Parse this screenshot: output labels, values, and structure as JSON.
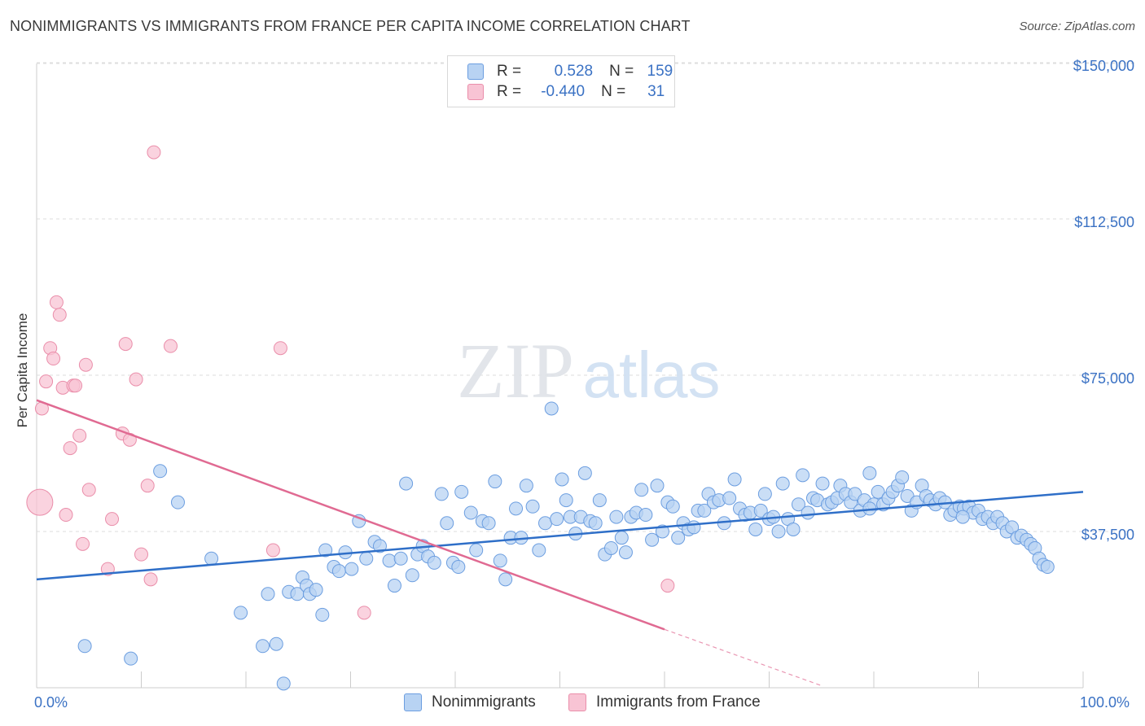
{
  "title": "NONIMMIGRANTS VS IMMIGRANTS FROM FRANCE PER CAPITA INCOME CORRELATION CHART",
  "source": "Source: ZipAtlas.com",
  "watermark": {
    "zip": "ZIP",
    "atlas": "atlas"
  },
  "colors": {
    "blue_fill": "#b8d3f3",
    "blue_stroke": "#6c9ee0",
    "blue_line": "#2f6fc8",
    "pink_fill": "#f8c4d4",
    "pink_stroke": "#ea8eaa",
    "pink_line": "#e06a92",
    "axis_text": "#3b72c4"
  },
  "legend": {
    "rows": [
      {
        "r_label": "R =",
        "r_value": "0.528",
        "n_label": "N =",
        "n_value": "159",
        "color": "#b8d3f3",
        "border": "#6c9ee0"
      },
      {
        "r_label": "R =",
        "r_value": "-0.440",
        "n_label": "N =",
        "n_value": "31",
        "color": "#f8c4d4",
        "border": "#ea8eaa"
      }
    ]
  },
  "bottom_legend": [
    {
      "label": "Nonimmigrants",
      "color": "#b8d3f3",
      "border": "#6c9ee0"
    },
    {
      "label": "Immigrants from France",
      "color": "#f8c4d4",
      "border": "#ea8eaa"
    }
  ],
  "chart_data": {
    "type": "scatter",
    "title": "NONIMMIGRANTS VS IMMIGRANTS FROM FRANCE PER CAPITA INCOME CORRELATION CHART",
    "xlabel": "",
    "ylabel": "Per Capita Income",
    "xlim": [
      0,
      100
    ],
    "ylim": [
      0,
      152000
    ],
    "x_tick_labels": [
      "0.0%",
      "100.0%"
    ],
    "y_ticks": [
      37500,
      75000,
      112500,
      150000
    ],
    "y_tick_labels": [
      "$37,500",
      "$75,000",
      "$112,500",
      "$150,000"
    ],
    "grid": true,
    "legend_position": "top-center",
    "series": [
      {
        "name": "Nonimmigrants",
        "trend": {
          "x": [
            0,
            100
          ],
          "y": [
            26000,
            47000
          ]
        },
        "points": [
          [
            4.6,
            10000
          ],
          [
            9.0,
            7000
          ],
          [
            11.8,
            52000
          ],
          [
            13.5,
            44500
          ],
          [
            16.7,
            31000
          ],
          [
            19.5,
            18000
          ],
          [
            21.6,
            10000
          ],
          [
            22.1,
            22500
          ],
          [
            22.9,
            10500
          ],
          [
            23.6,
            1000
          ],
          [
            24.1,
            23000
          ],
          [
            24.9,
            22500
          ],
          [
            25.4,
            26500
          ],
          [
            25.8,
            24500
          ],
          [
            26.1,
            22500
          ],
          [
            26.7,
            23500
          ],
          [
            27.3,
            17500
          ],
          [
            27.6,
            33000
          ],
          [
            28.4,
            29000
          ],
          [
            28.9,
            28000
          ],
          [
            29.5,
            32500
          ],
          [
            30.1,
            28500
          ],
          [
            30.8,
            40000
          ],
          [
            31.5,
            31000
          ],
          [
            32.3,
            35000
          ],
          [
            32.8,
            34000
          ],
          [
            33.7,
            30500
          ],
          [
            34.2,
            24500
          ],
          [
            34.8,
            31000
          ],
          [
            35.3,
            49000
          ],
          [
            35.9,
            27000
          ],
          [
            36.4,
            32000
          ],
          [
            36.9,
            34000
          ],
          [
            37.4,
            31500
          ],
          [
            38.0,
            30000
          ],
          [
            38.7,
            46500
          ],
          [
            39.2,
            39500
          ],
          [
            39.8,
            30000
          ],
          [
            40.3,
            29000
          ],
          [
            40.6,
            47000
          ],
          [
            41.5,
            42000
          ],
          [
            42.0,
            33000
          ],
          [
            42.6,
            40000
          ],
          [
            43.2,
            39500
          ],
          [
            43.8,
            49500
          ],
          [
            44.3,
            30500
          ],
          [
            44.8,
            26000
          ],
          [
            45.3,
            36000
          ],
          [
            45.8,
            43000
          ],
          [
            46.3,
            36000
          ],
          [
            46.8,
            48500
          ],
          [
            47.4,
            43500
          ],
          [
            48.0,
            33000
          ],
          [
            48.6,
            39500
          ],
          [
            49.2,
            67000
          ],
          [
            49.7,
            40500
          ],
          [
            50.2,
            50000
          ],
          [
            50.6,
            45000
          ],
          [
            51.0,
            41000
          ],
          [
            51.5,
            37000
          ],
          [
            52.0,
            41000
          ],
          [
            52.4,
            51500
          ],
          [
            52.9,
            40000
          ],
          [
            53.4,
            39500
          ],
          [
            53.8,
            45000
          ],
          [
            54.3,
            32000
          ],
          [
            54.9,
            33500
          ],
          [
            55.4,
            41000
          ],
          [
            55.9,
            36000
          ],
          [
            56.3,
            32500
          ],
          [
            56.8,
            41000
          ],
          [
            57.3,
            42000
          ],
          [
            57.8,
            47500
          ],
          [
            58.2,
            41500
          ],
          [
            58.8,
            35500
          ],
          [
            59.3,
            48500
          ],
          [
            59.8,
            37500
          ],
          [
            60.3,
            44500
          ],
          [
            60.8,
            43500
          ],
          [
            61.3,
            36000
          ],
          [
            61.8,
            39500
          ],
          [
            62.3,
            38000
          ],
          [
            62.8,
            38500
          ],
          [
            63.2,
            42500
          ],
          [
            63.8,
            42500
          ],
          [
            64.2,
            46500
          ],
          [
            64.7,
            44500
          ],
          [
            65.2,
            45000
          ],
          [
            65.7,
            39500
          ],
          [
            66.2,
            45500
          ],
          [
            66.7,
            50000
          ],
          [
            67.2,
            43000
          ],
          [
            67.7,
            41500
          ],
          [
            68.2,
            42000
          ],
          [
            68.7,
            38000
          ],
          [
            69.2,
            42500
          ],
          [
            69.6,
            46500
          ],
          [
            70.0,
            40500
          ],
          [
            70.4,
            41000
          ],
          [
            70.9,
            37500
          ],
          [
            71.3,
            49000
          ],
          [
            71.8,
            40500
          ],
          [
            72.3,
            38000
          ],
          [
            72.8,
            44000
          ],
          [
            73.2,
            51000
          ],
          [
            73.7,
            42000
          ],
          [
            74.2,
            45500
          ],
          [
            74.6,
            45000
          ],
          [
            75.1,
            49000
          ],
          [
            75.6,
            44000
          ],
          [
            76.0,
            44500
          ],
          [
            76.5,
            45500
          ],
          [
            76.8,
            48500
          ],
          [
            77.3,
            46500
          ],
          [
            77.8,
            44500
          ],
          [
            78.2,
            46500
          ],
          [
            78.7,
            42500
          ],
          [
            79.1,
            45000
          ],
          [
            79.6,
            51500
          ],
          [
            80.0,
            44000
          ],
          [
            80.4,
            47000
          ],
          [
            80.9,
            44000
          ],
          [
            81.4,
            45500
          ],
          [
            81.8,
            47000
          ],
          [
            82.3,
            48500
          ],
          [
            82.7,
            50500
          ],
          [
            83.2,
            46000
          ],
          [
            83.6,
            42500
          ],
          [
            84.1,
            44500
          ],
          [
            84.6,
            48500
          ],
          [
            85.0,
            46000
          ],
          [
            85.4,
            45000
          ],
          [
            85.9,
            44000
          ],
          [
            86.3,
            45500
          ],
          [
            86.8,
            44500
          ],
          [
            87.3,
            41500
          ],
          [
            87.7,
            42500
          ],
          [
            88.2,
            43500
          ],
          [
            88.6,
            43000
          ],
          [
            89.1,
            43500
          ],
          [
            89.5,
            42000
          ],
          [
            90.0,
            42500
          ],
          [
            90.4,
            40500
          ],
          [
            90.9,
            41000
          ],
          [
            91.4,
            39500
          ],
          [
            91.8,
            41000
          ],
          [
            92.3,
            39500
          ],
          [
            92.7,
            37500
          ],
          [
            93.2,
            38500
          ],
          [
            93.7,
            36000
          ],
          [
            94.1,
            36500
          ],
          [
            94.6,
            35500
          ],
          [
            95.0,
            34500
          ],
          [
            95.4,
            33500
          ],
          [
            95.8,
            31000
          ],
          [
            96.2,
            29500
          ],
          [
            96.6,
            29000
          ],
          [
            88.5,
            41000
          ],
          [
            79.6,
            43000
          ]
        ]
      },
      {
        "name": "Immigrants from France",
        "trend": {
          "x": [
            0,
            60
          ],
          "y": [
            69000,
            14000
          ]
        },
        "trend_dashed": {
          "x": [
            60,
            75
          ],
          "y": [
            14000,
            500
          ]
        },
        "points": [
          [
            0.3,
            44500
          ],
          [
            0.5,
            67000
          ],
          [
            0.9,
            73500
          ],
          [
            1.3,
            81500
          ],
          [
            1.6,
            79000
          ],
          [
            1.9,
            92500
          ],
          [
            2.2,
            89500
          ],
          [
            2.5,
            72000
          ],
          [
            2.8,
            41500
          ],
          [
            3.2,
            57500
          ],
          [
            3.5,
            72500
          ],
          [
            3.7,
            72500
          ],
          [
            4.1,
            60500
          ],
          [
            4.4,
            34500
          ],
          [
            4.7,
            77500
          ],
          [
            5.0,
            47500
          ],
          [
            6.8,
            28500
          ],
          [
            7.2,
            40500
          ],
          [
            8.2,
            61000
          ],
          [
            8.5,
            82500
          ],
          [
            8.9,
            59500
          ],
          [
            9.5,
            74000
          ],
          [
            10.0,
            32000
          ],
          [
            10.6,
            48500
          ],
          [
            10.9,
            26000
          ],
          [
            11.2,
            128500
          ],
          [
            12.8,
            82000
          ],
          [
            22.6,
            33000
          ],
          [
            23.3,
            81500
          ],
          [
            31.3,
            18000
          ],
          [
            60.3,
            24500
          ]
        ],
        "point_sizes": {
          "0": 16
        }
      }
    ]
  }
}
